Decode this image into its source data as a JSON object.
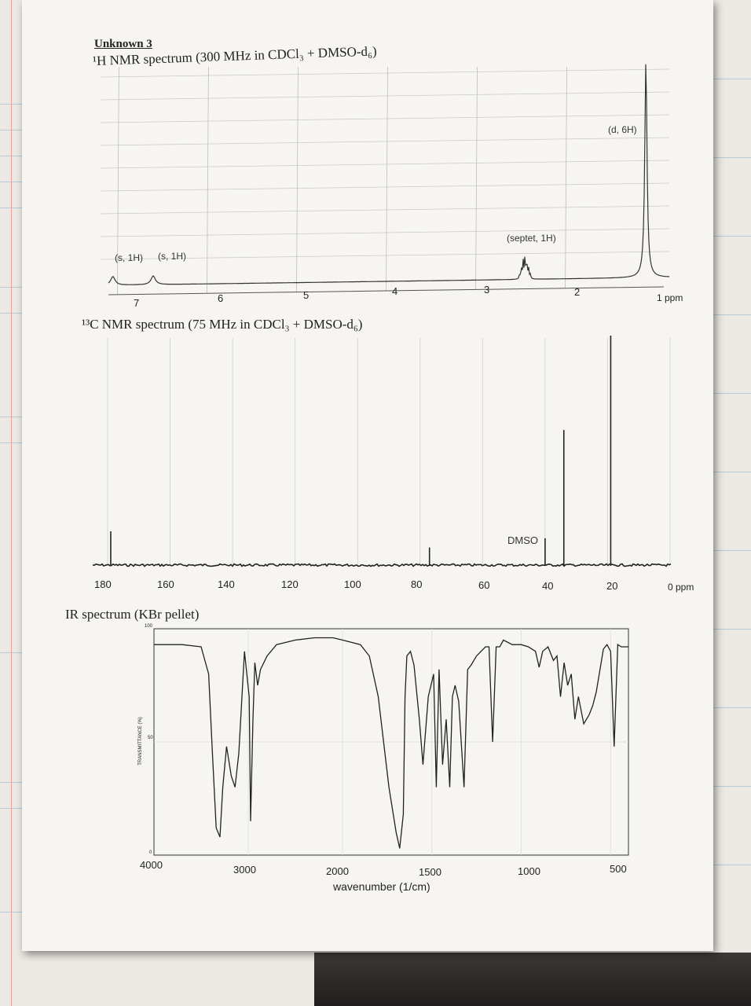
{
  "heading": "Unknown 3",
  "charts": {
    "h_nmr": {
      "title": "¹H NMR spectrum (300 MHz in CDCl₃ + DMSO-d₆)",
      "ticks": [
        "7",
        "6",
        "5",
        "4",
        "3",
        "2",
        "1 ppm"
      ],
      "annotations": [
        "(s, 1H)",
        "(s, 1H)",
        "(septet, 1H)",
        "(d, 6H)"
      ]
    },
    "c_nmr": {
      "title": "¹³C NMR spectrum (75 MHz in CDCl₃ + DMSO-d₆)",
      "ticks": [
        "180",
        "160",
        "140",
        "120",
        "100",
        "80",
        "60",
        "40",
        "20",
        "0 ppm"
      ],
      "annotations": [
        "DMSO"
      ]
    },
    "ir": {
      "title": "IR spectrum (KBr pellet)",
      "ylabel": "TRANSMITTANCE (%)",
      "yticks": [
        "100",
        "50",
        "0"
      ],
      "xticks": [
        "4000",
        "3000",
        "2000",
        "1500",
        "1000",
        "500"
      ],
      "xlabel": "wavenumber (1/cm)"
    }
  },
  "chart_data": [
    {
      "type": "line",
      "title": "¹H NMR spectrum (300 MHz in CDCl₃ + DMSO-d₆)",
      "xlabel": "ppm",
      "xlim": [
        7.1,
        0.9
      ],
      "peaks": [
        {
          "ppm": 7.05,
          "height": 0.04,
          "label": "(s, 1H)"
        },
        {
          "ppm": 6.6,
          "height": 0.04,
          "label": "(s, 1H)"
        },
        {
          "ppm": 2.45,
          "height": 0.1,
          "label": "(septet, 1H)"
        },
        {
          "ppm": 1.1,
          "height": 1.0,
          "label": "(d, 6H)"
        }
      ]
    },
    {
      "type": "line",
      "title": "¹³C NMR spectrum (75 MHz in CDCl₃ + DMSO-d₆)",
      "xlabel": "ppm",
      "xlim": [
        180,
        0
      ],
      "peaks": [
        {
          "ppm": 179,
          "height": 0.15
        },
        {
          "ppm": 77,
          "height": 0.08
        },
        {
          "ppm": 40,
          "height": 0.12,
          "label": "DMSO"
        },
        {
          "ppm": 34,
          "height": 0.59
        },
        {
          "ppm": 19,
          "height": 1.0
        }
      ]
    },
    {
      "type": "line",
      "title": "IR spectrum (KBr pellet)",
      "xlabel": "wavenumber (1/cm)",
      "ylabel": "TRANSMITTANCE (%)",
      "xlim": [
        4000,
        400
      ],
      "ylim": [
        0,
        100
      ],
      "x": [
        4000,
        3700,
        3500,
        3420,
        3380,
        3340,
        3300,
        3270,
        3230,
        3180,
        3140,
        3100,
        3040,
        2990,
        2975,
        2950,
        2930,
        2900,
        2870,
        2800,
        2700,
        2500,
        2300,
        2100,
        2000,
        1900,
        1850,
        1800,
        1740,
        1700,
        1680,
        1660,
        1650,
        1640,
        1620,
        1600,
        1570,
        1550,
        1520,
        1490,
        1475,
        1460,
        1440,
        1420,
        1400,
        1385,
        1370,
        1350,
        1320,
        1300,
        1280,
        1250,
        1200,
        1180,
        1160,
        1140,
        1120,
        1100,
        1050,
        1000,
        960,
        920,
        900,
        880,
        850,
        820,
        800,
        780,
        760,
        740,
        720,
        700,
        680,
        650,
        620,
        600,
        580,
        540,
        520,
        500,
        480,
        460,
        440,
        420,
        400
      ],
      "y": [
        93,
        93,
        92,
        80,
        45,
        12,
        8,
        30,
        48,
        35,
        30,
        45,
        90,
        70,
        15,
        60,
        85,
        75,
        82,
        88,
        93,
        95,
        96,
        96,
        95,
        93,
        88,
        70,
        30,
        10,
        3,
        18,
        70,
        88,
        90,
        84,
        60,
        40,
        70,
        80,
        30,
        82,
        40,
        60,
        30,
        70,
        75,
        68,
        30,
        82,
        84,
        88,
        92,
        92,
        50,
        92,
        92,
        95,
        93,
        93,
        92,
        90,
        83,
        90,
        92,
        86,
        88,
        70,
        85,
        75,
        80,
        60,
        70,
        58,
        62,
        66,
        72,
        91,
        93,
        90,
        48,
        93,
        92,
        92,
        92
      ]
    }
  ]
}
